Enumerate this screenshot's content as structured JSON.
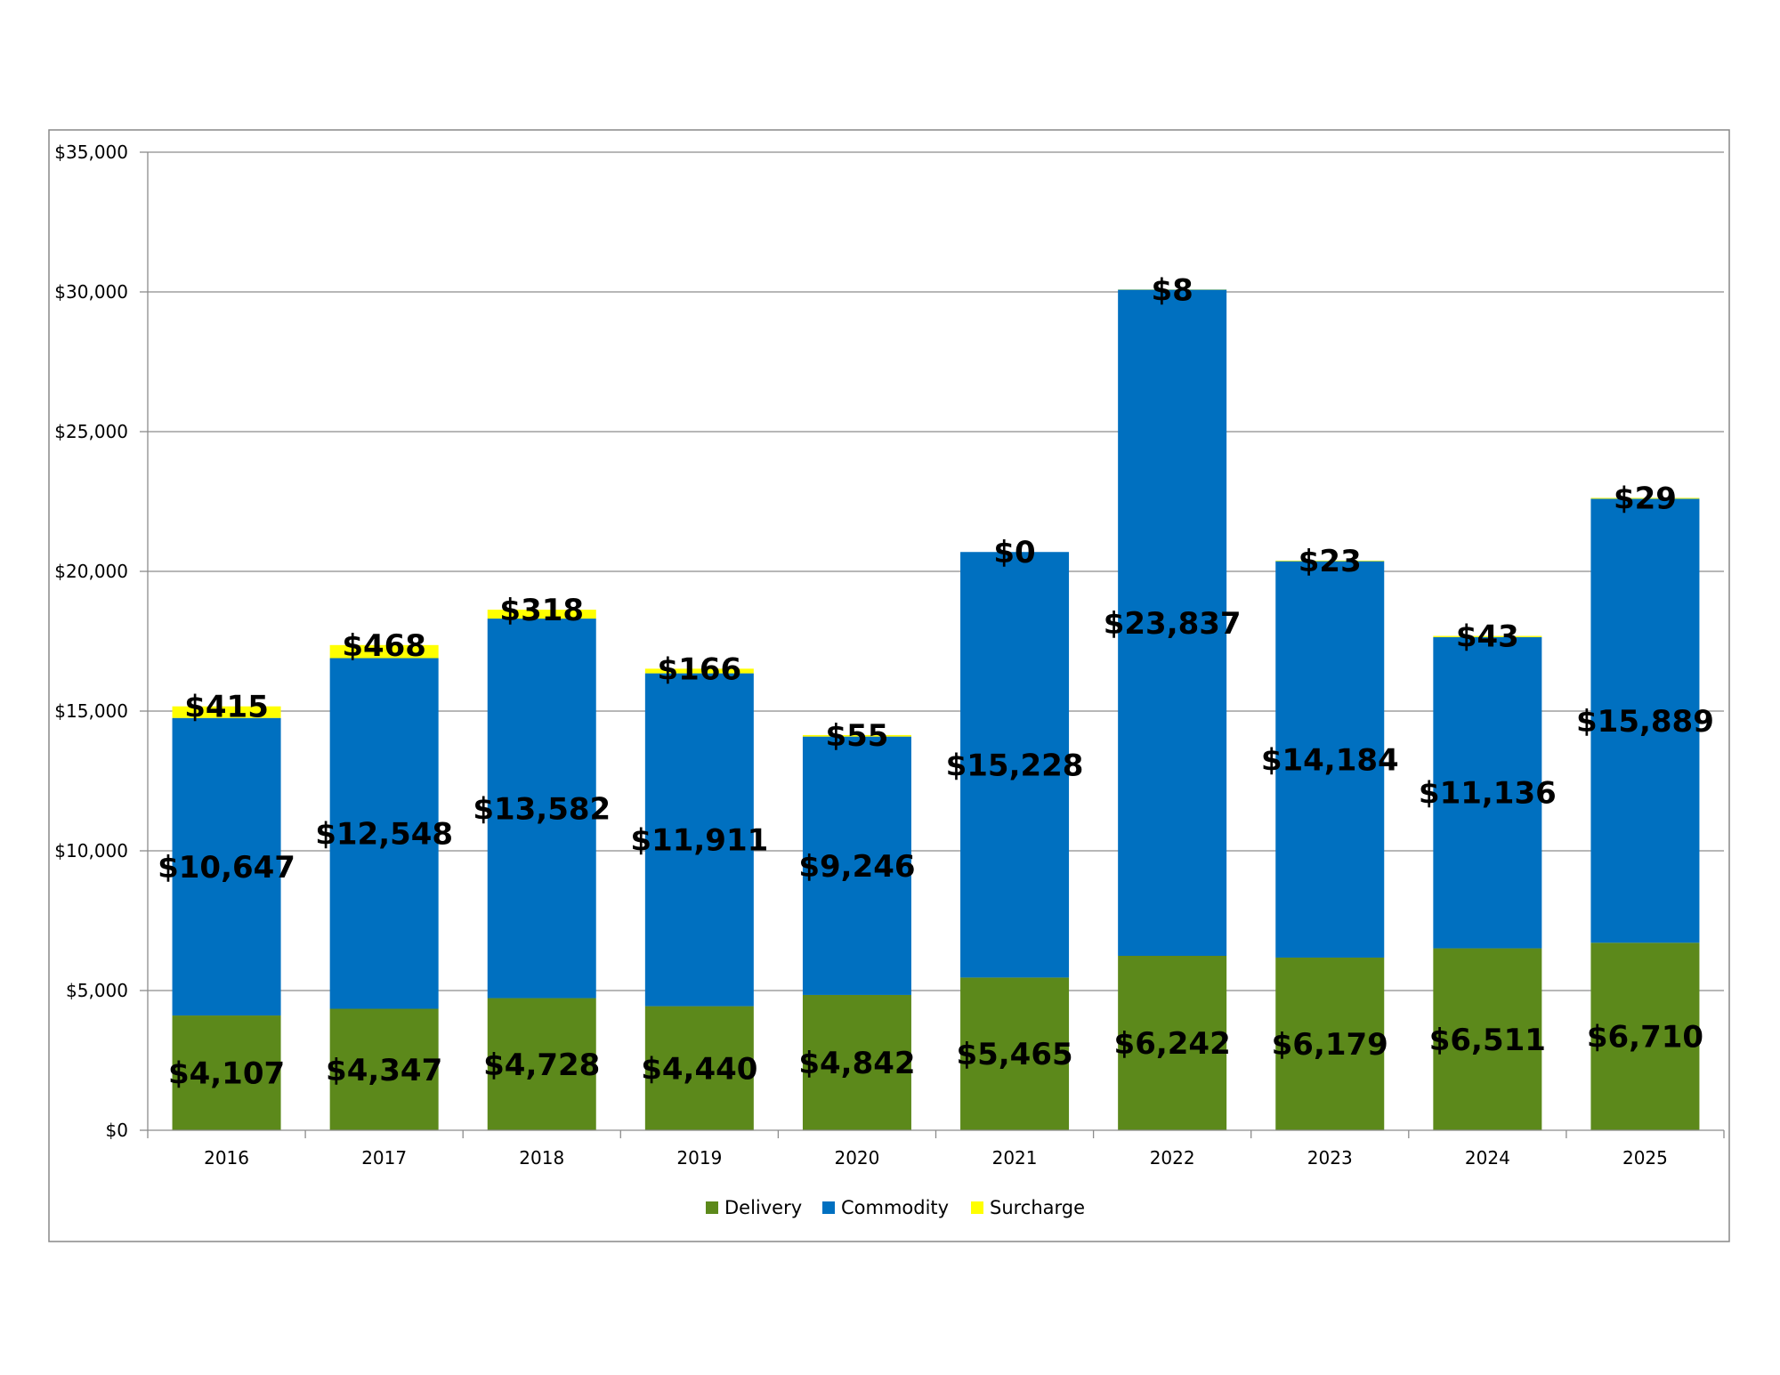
{
  "chart_data": {
    "type": "bar",
    "stacked": true,
    "title": "",
    "xlabel": "",
    "ylabel": "",
    "categories": [
      "2016",
      "2017",
      "2018",
      "2019",
      "2020",
      "2021",
      "2022",
      "2023",
      "2024",
      "2025"
    ],
    "series": [
      {
        "name": "Delivery",
        "color": "#5C891B",
        "values": [
          4107,
          4347,
          4728,
          4440,
          4842,
          5465,
          6242,
          6179,
          6511,
          6710
        ],
        "labels": [
          "$4,107",
          "$4,347",
          "$4,728",
          "$4,440",
          "$4,842",
          "$5,465",
          "$6,242",
          "$6,179",
          "$6,511",
          "$6,710"
        ]
      },
      {
        "name": "Commodity",
        "color": "#0070C0",
        "values": [
          10647,
          12548,
          13582,
          11911,
          9246,
          15228,
          23837,
          14184,
          11136,
          15889
        ],
        "labels": [
          "$10,647",
          "$12,548",
          "$13,582",
          "$11,911",
          "$9,246",
          "$15,228",
          "$23,837",
          "$14,184",
          "$11,136",
          "$15,889"
        ]
      },
      {
        "name": "Surcharge",
        "color": "#FFFF00",
        "values": [
          415,
          468,
          318,
          166,
          55,
          0,
          8,
          23,
          43,
          29
        ],
        "labels": [
          "$415",
          "$468",
          "$318",
          "$166",
          "$55",
          "$0",
          "$8",
          "$23",
          "$43",
          "$29"
        ]
      }
    ],
    "ylim": [
      0,
      35000
    ],
    "yticks": [
      0,
      5000,
      10000,
      15000,
      20000,
      25000,
      30000,
      35000
    ],
    "ytick_labels": [
      "$0",
      "$5,000",
      "$10,000",
      "$15,000",
      "$20,000",
      "$25,000",
      "$30,000",
      "$35,000"
    ],
    "grid": true,
    "legend": "bottom"
  }
}
